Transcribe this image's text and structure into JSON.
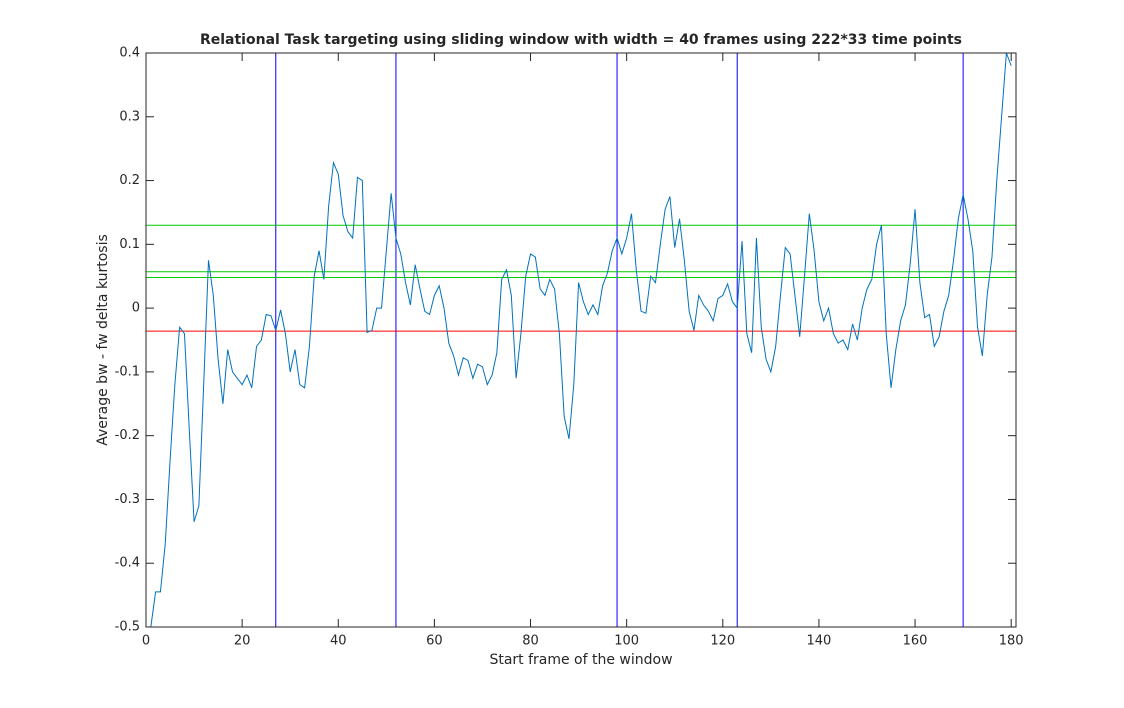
{
  "chart_data": {
    "type": "line",
    "title": "Relational Task targeting using sliding window with width = 40 frames using 222*33 time points",
    "xlabel": "Start frame of the window",
    "ylabel": "Average bw - fw delta kurtosis",
    "xlim": [
      0,
      181
    ],
    "ylim": [
      -0.5,
      0.4
    ],
    "xticks": [
      0,
      20,
      40,
      60,
      80,
      100,
      120,
      140,
      160,
      180
    ],
    "yticks": [
      -0.5,
      -0.4,
      -0.3,
      -0.2,
      -0.1,
      0,
      0.1,
      0.2,
      0.3,
      0.4
    ],
    "x": [
      1,
      2,
      3,
      4,
      5,
      6,
      7,
      8,
      9,
      10,
      11,
      12,
      13,
      14,
      15,
      16,
      17,
      18,
      19,
      20,
      21,
      22,
      23,
      24,
      25,
      26,
      27,
      28,
      29,
      30,
      31,
      32,
      33,
      34,
      35,
      36,
      37,
      38,
      39,
      40,
      41,
      42,
      43,
      44,
      45,
      46,
      47,
      48,
      49,
      50,
      51,
      52,
      53,
      54,
      55,
      56,
      57,
      58,
      59,
      60,
      61,
      62,
      63,
      64,
      65,
      66,
      67,
      68,
      69,
      70,
      71,
      72,
      73,
      74,
      75,
      76,
      77,
      78,
      79,
      80,
      81,
      82,
      83,
      84,
      85,
      86,
      87,
      88,
      89,
      90,
      91,
      92,
      93,
      94,
      95,
      96,
      97,
      98,
      99,
      100,
      101,
      102,
      103,
      104,
      105,
      106,
      107,
      108,
      109,
      110,
      111,
      112,
      113,
      114,
      115,
      116,
      117,
      118,
      119,
      120,
      121,
      122,
      123,
      124,
      125,
      126,
      127,
      128,
      129,
      130,
      131,
      132,
      133,
      134,
      135,
      136,
      137,
      138,
      139,
      140,
      141,
      142,
      143,
      144,
      145,
      146,
      147,
      148,
      149,
      150,
      151,
      152,
      153,
      154,
      155,
      156,
      157,
      158,
      159,
      160,
      161,
      162,
      163,
      164,
      165,
      166,
      167,
      168,
      169,
      170,
      171,
      172,
      173,
      174,
      175,
      176,
      177,
      178,
      179,
      180
    ],
    "series": [
      {
        "color": "#0072bd",
        "values": [
          -0.5,
          -0.445,
          -0.445,
          -0.37,
          -0.24,
          -0.12,
          -0.03,
          -0.04,
          -0.19,
          -0.335,
          -0.31,
          -0.12,
          0.075,
          0.02,
          -0.08,
          -0.15,
          -0.065,
          -0.1,
          -0.11,
          -0.12,
          -0.105,
          -0.125,
          -0.06,
          -0.05,
          -0.01,
          -0.012,
          -0.035,
          -0.003,
          -0.04,
          -0.1,
          -0.065,
          -0.12,
          -0.125,
          -0.06,
          0.05,
          0.09,
          0.045,
          0.16,
          0.228,
          0.21,
          0.145,
          0.12,
          0.11,
          0.205,
          0.2,
          -0.038,
          -0.035,
          0.0,
          0.0,
          0.09,
          0.18,
          0.11,
          0.085,
          0.04,
          0.005,
          0.068,
          0.03,
          -0.005,
          -0.01,
          0.02,
          0.035,
          0.0,
          -0.055,
          -0.075,
          -0.105,
          -0.078,
          -0.082,
          -0.11,
          -0.088,
          -0.092,
          -0.12,
          -0.105,
          -0.07,
          0.045,
          0.06,
          0.02,
          -0.11,
          -0.04,
          0.05,
          0.085,
          0.08,
          0.03,
          0.02,
          0.045,
          0.03,
          -0.04,
          -0.17,
          -0.205,
          -0.12,
          0.04,
          0.01,
          -0.01,
          0.005,
          -0.01,
          0.035,
          0.055,
          0.09,
          0.11,
          0.085,
          0.11,
          0.148,
          0.06,
          -0.005,
          -0.008,
          0.05,
          0.04,
          0.1,
          0.155,
          0.175,
          0.095,
          0.14,
          0.075,
          -0.005,
          -0.035,
          0.02,
          0.005,
          -0.005,
          -0.02,
          0.015,
          0.02,
          0.038,
          0.01,
          0.0,
          0.105,
          -0.04,
          -0.07,
          0.11,
          -0.03,
          -0.08,
          -0.1,
          -0.06,
          0.02,
          0.095,
          0.085,
          0.02,
          -0.045,
          0.05,
          0.148,
          0.09,
          0.01,
          -0.02,
          0.0,
          -0.04,
          -0.055,
          -0.05,
          -0.065,
          -0.025,
          -0.05,
          0.0,
          0.03,
          0.045,
          0.1,
          0.13,
          -0.04,
          -0.125,
          -0.065,
          -0.02,
          0.005,
          0.07,
          0.155,
          0.04,
          -0.015,
          -0.01,
          -0.06,
          -0.045,
          -0.005,
          0.02,
          0.075,
          0.14,
          0.178,
          0.14,
          0.09,
          -0.03,
          -0.075,
          0.02,
          0.08,
          0.2,
          0.3,
          0.4,
          0.38
        ]
      }
    ],
    "vertical_lines": {
      "color": "#0000ff",
      "values": [
        27,
        52,
        98,
        123,
        170
      ]
    },
    "horizontal_lines": [
      {
        "color": "#00cc00",
        "values": [
          0.13,
          0.057,
          0.048
        ]
      },
      {
        "color": "#ff0000",
        "values": [
          -0.036
        ]
      }
    ]
  }
}
